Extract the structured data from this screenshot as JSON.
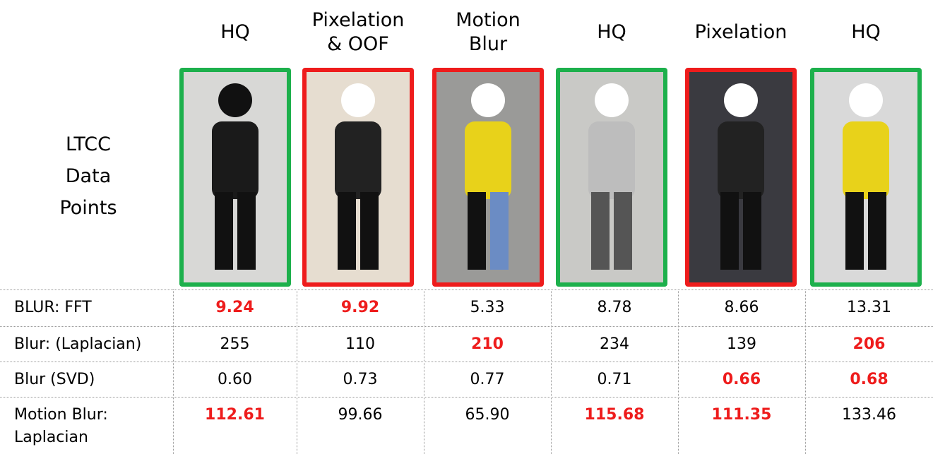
{
  "row_label": [
    "LTCC",
    "Data",
    "Points"
  ],
  "columns": [
    {
      "header": [
        "HQ"
      ],
      "frame": "#1db04c"
    },
    {
      "header": [
        "Pixelation",
        "& OOF"
      ],
      "frame": "#ee1c1c"
    },
    {
      "header": [
        "Motion",
        "Blur"
      ],
      "frame": "#ee1c1c"
    },
    {
      "header": [
        "HQ"
      ],
      "frame": "#1db04c"
    },
    {
      "header": [
        "Pixelation"
      ],
      "frame": "#ee1c1c"
    },
    {
      "header": [
        "HQ"
      ],
      "frame": "#1db04c"
    }
  ],
  "highlight_color": "#ee1c1c",
  "table": {
    "rows": [
      {
        "label": [
          "BLUR: FFT"
        ],
        "cells": [
          {
            "text": "9.24",
            "highlight": true
          },
          {
            "text": "9.92",
            "highlight": true
          },
          {
            "text": "5.33",
            "highlight": false
          },
          {
            "text": "8.78",
            "highlight": false
          },
          {
            "text": "8.66",
            "highlight": false
          },
          {
            "text": "13.31",
            "highlight": false
          }
        ]
      },
      {
        "label": [
          "Blur: (Laplacian)"
        ],
        "cells": [
          {
            "text": "255",
            "highlight": false
          },
          {
            "text": "110",
            "highlight": false
          },
          {
            "text": "210",
            "highlight": true
          },
          {
            "text": "234",
            "highlight": false
          },
          {
            "text": "139",
            "highlight": false
          },
          {
            "text": "206",
            "highlight": true
          }
        ]
      },
      {
        "label": [
          "Blur (SVD)"
        ],
        "cells": [
          {
            "text": "0.60",
            "highlight": false
          },
          {
            "text": "0.73",
            "highlight": false
          },
          {
            "text": "0.77",
            "highlight": false
          },
          {
            "text": "0.71",
            "highlight": false
          },
          {
            "text": "0.66",
            "highlight": true
          },
          {
            "text": "0.68",
            "highlight": true
          }
        ]
      },
      {
        "label": [
          "Motion Blur:",
          "Laplacian"
        ],
        "cells": [
          {
            "text": "112.61",
            "highlight": true
          },
          {
            "text": "99.66",
            "highlight": false
          },
          {
            "text": "65.90",
            "highlight": false
          },
          {
            "text": "115.68",
            "highlight": true
          },
          {
            "text": "111.35",
            "highlight": true
          },
          {
            "text": "133.46",
            "highlight": false
          }
        ]
      }
    ]
  }
}
